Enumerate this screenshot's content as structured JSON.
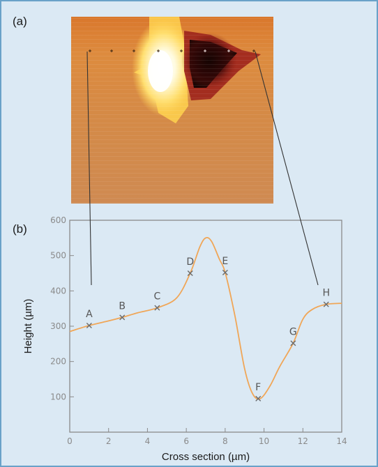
{
  "figure": {
    "panel_a_label": "(a)",
    "panel_b_label": "(b)"
  },
  "colors": {
    "background": "#dbe9f4",
    "frame": "#6aa2c8",
    "curve": "#f0a657",
    "marker": "#6b6b6b",
    "axis": "#8a8a8a",
    "callout": "#333333"
  },
  "chart_data": {
    "type": "line",
    "title": "",
    "xlabel": "Cross section (µm)",
    "ylabel": "Height (µm)",
    "xlim": [
      0,
      14
    ],
    "ylim": [
      0,
      600
    ],
    "xticks": [
      0,
      2,
      4,
      6,
      8,
      10,
      12,
      14
    ],
    "yticks": [
      100,
      200,
      300,
      400,
      500,
      600
    ],
    "grid": false,
    "curve": {
      "x": [
        0,
        1,
        2,
        2.7,
        3.5,
        4.5,
        5.5,
        6.2,
        6.7,
        7.0,
        7.3,
        7.7,
        8.0,
        8.5,
        9.0,
        9.4,
        9.8,
        10.3,
        10.8,
        11.5,
        12.0,
        12.5,
        13.2,
        14
      ],
      "y": [
        285,
        302,
        315,
        325,
        338,
        352,
        380,
        450,
        525,
        550,
        540,
        490,
        452,
        330,
        180,
        110,
        95,
        130,
        185,
        252,
        320,
        348,
        362,
        365
      ]
    },
    "points": [
      {
        "label": "A",
        "x": 1.0,
        "y": 302
      },
      {
        "label": "B",
        "x": 2.7,
        "y": 325
      },
      {
        "label": "C",
        "x": 4.5,
        "y": 352
      },
      {
        "label": "D",
        "x": 6.2,
        "y": 450
      },
      {
        "label": "E",
        "x": 8.0,
        "y": 452
      },
      {
        "label": "F",
        "x": 9.7,
        "y": 95
      },
      {
        "label": "G",
        "x": 11.5,
        "y": 252
      },
      {
        "label": "H",
        "x": 13.2,
        "y": 362
      }
    ]
  }
}
